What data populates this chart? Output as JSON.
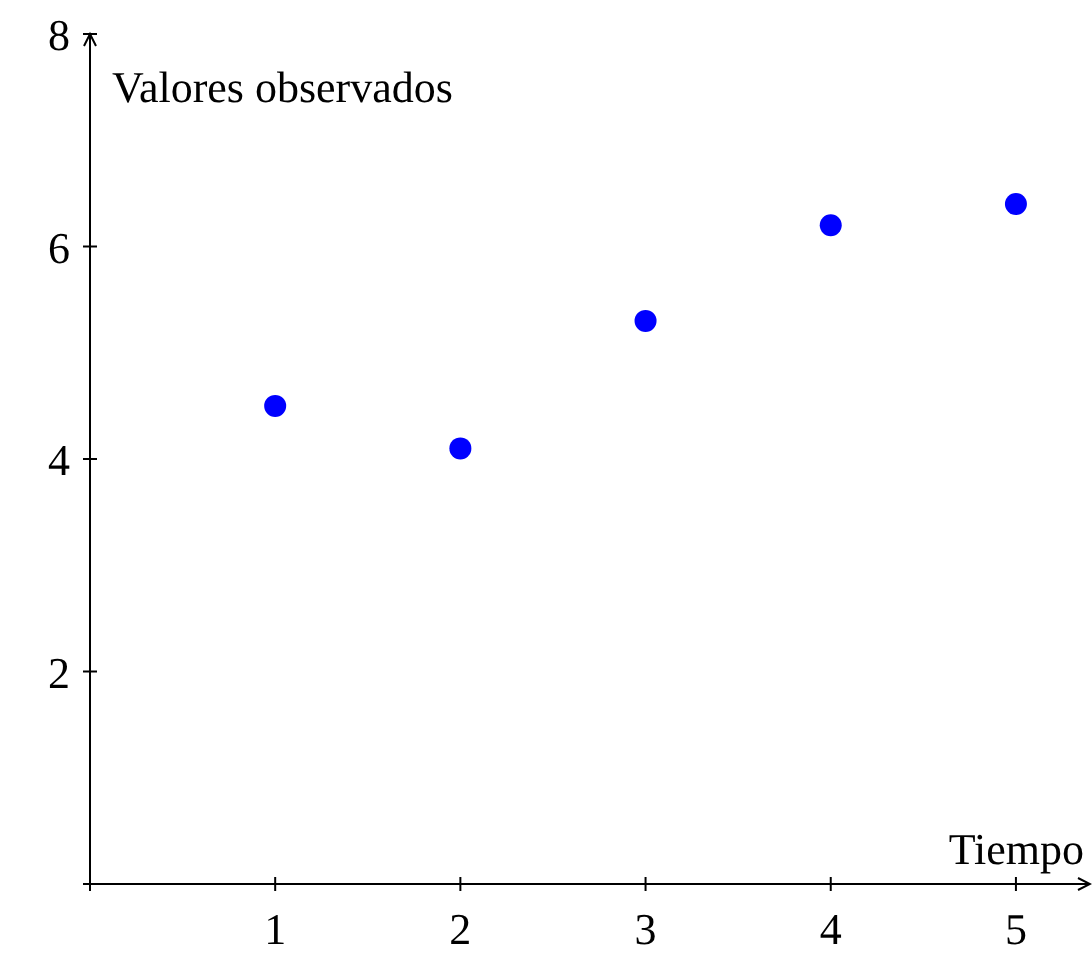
{
  "chart_data": {
    "type": "scatter",
    "xlabel": "Tiempo",
    "ylabel": "Valores observados",
    "x": [
      1,
      2,
      3,
      4,
      5
    ],
    "series": [
      {
        "color": "#0000ff",
        "values": [
          4.5,
          4.1,
          5.3,
          6.2,
          6.4
        ]
      }
    ],
    "xlim": [
      0,
      5.4
    ],
    "ylim": [
      0,
      8
    ],
    "xticks": [
      {
        "value": 0,
        "label": null
      },
      1,
      2,
      3,
      4,
      5
    ],
    "yticks": [
      {
        "value": 0,
        "label": null
      },
      2,
      4,
      6,
      8
    ],
    "marker": "circle",
    "grid": false
  }
}
